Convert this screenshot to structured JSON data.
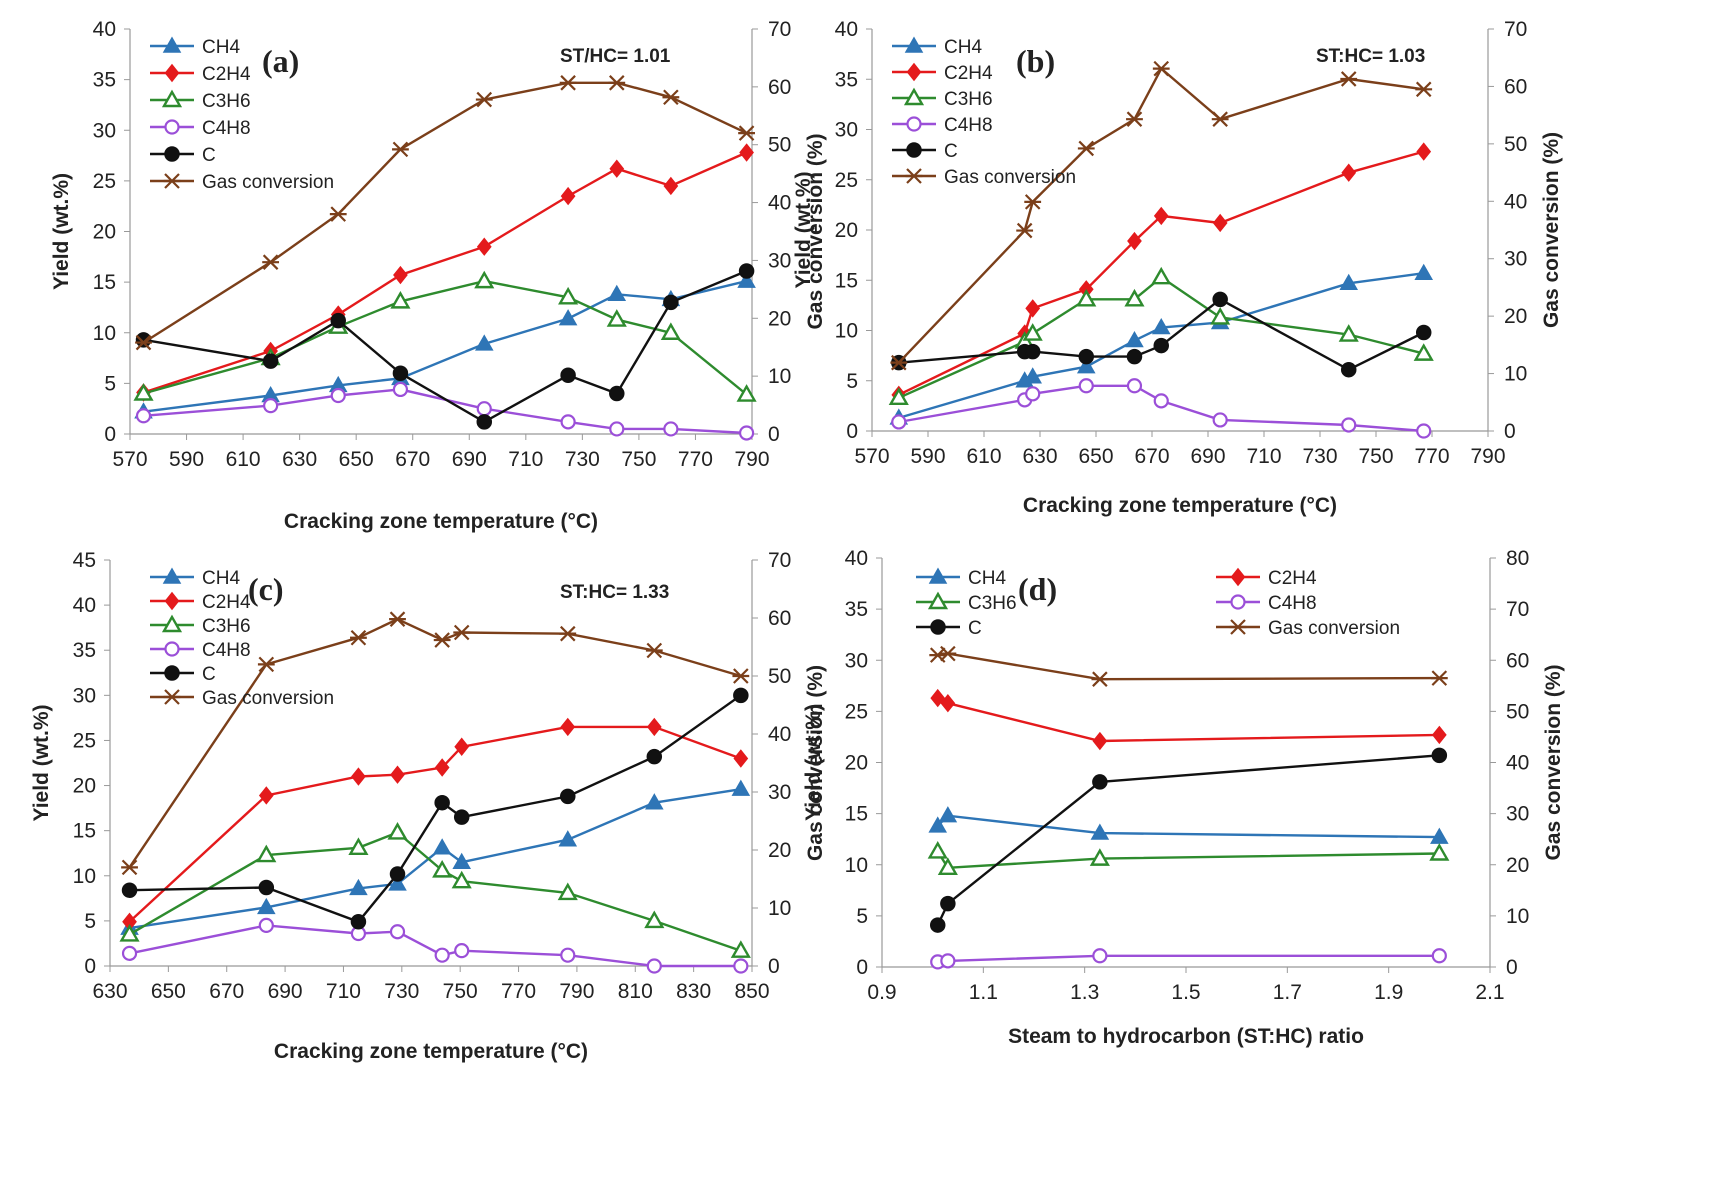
{
  "figure": {
    "description_free": true
  },
  "chart_data": [
    {
      "type": "line",
      "panel_label": "(a)",
      "annotation": "ST/HC= 1.01",
      "xlabel": "Cracking zone temperature (°C)",
      "ylabel": "Yield (wt.%)",
      "y2label": "Gas conversion (%)",
      "xlim": [
        570,
        800
      ],
      "xticks": [
        "570",
        "590",
        "610",
        "630",
        "650",
        "670",
        "690",
        "710",
        "730",
        "750",
        "770",
        "790"
      ],
      "ylim": [
        0,
        40
      ],
      "yticks": [
        "0",
        "5",
        "10",
        "15",
        "20",
        "25",
        "30",
        "35",
        "40"
      ],
      "y2lim": [
        0,
        70
      ],
      "y2ticks": [
        "0",
        "10",
        "20",
        "30",
        "40",
        "50",
        "60",
        "70"
      ],
      "legend_layout": "single-column",
      "series": [
        {
          "name": "CH4",
          "color": "#2e75b6",
          "marker": "triangle",
          "axis": "left",
          "x": [
            575,
            622,
            647,
            670,
            701,
            732,
            750,
            770,
            798
          ],
          "y": [
            2.2,
            3.8,
            4.8,
            5.5,
            8.9,
            11.4,
            13.8,
            13.3,
            15.1
          ]
        },
        {
          "name": "C2H4",
          "color": "#e41a1c",
          "marker": "diamond",
          "axis": "left",
          "x": [
            575,
            622,
            647,
            670,
            701,
            732,
            750,
            770,
            798
          ],
          "y": [
            4.1,
            8.2,
            11.8,
            15.7,
            18.5,
            23.5,
            26.2,
            24.5,
            27.8
          ]
        },
        {
          "name": "C3H6",
          "color": "#2e8b2e",
          "marker": "triangle-open",
          "axis": "left",
          "x": [
            575,
            622,
            647,
            670,
            701,
            732,
            750,
            770,
            798
          ],
          "y": [
            4.0,
            7.5,
            10.6,
            13.1,
            15.1,
            13.5,
            11.3,
            10.0,
            3.9
          ]
        },
        {
          "name": "C4H8",
          "color": "#9b4fd8",
          "marker": "circle-open",
          "axis": "left",
          "x": [
            575,
            622,
            647,
            670,
            701,
            732,
            750,
            770,
            798
          ],
          "y": [
            1.8,
            2.8,
            3.8,
            4.4,
            2.5,
            1.2,
            0.5,
            0.5,
            0.1
          ]
        },
        {
          "name": "C",
          "color": "#111111",
          "marker": "circle",
          "axis": "left",
          "x": [
            575,
            622,
            647,
            670,
            701,
            732,
            750,
            770,
            798
          ],
          "y": [
            9.3,
            7.2,
            11.2,
            6.0,
            1.2,
            5.8,
            4.0,
            13.0,
            16.1
          ]
        },
        {
          "name": "Gas conversion",
          "color": "#7b3f1a",
          "marker": "star",
          "axis": "right",
          "x": [
            575,
            622,
            647,
            670,
            701,
            732,
            750,
            770,
            798
          ],
          "y": [
            15.8,
            29.7,
            38.0,
            49.2,
            57.8,
            60.7,
            60.7,
            58.2,
            52.0
          ]
        }
      ]
    },
    {
      "type": "line",
      "panel_label": "(b)",
      "annotation": "ST:HC= 1.03",
      "xlabel": "Cracking zone temperature (°C)",
      "ylabel": "Yield (wt.%)",
      "y2label": "Gas conversion (%)",
      "xlim": [
        570,
        800
      ],
      "xticks": [
        "570",
        "590",
        "610",
        "630",
        "650",
        "670",
        "690",
        "710",
        "730",
        "750",
        "770",
        "790"
      ],
      "ylim": [
        0,
        40
      ],
      "yticks": [
        "0",
        "5",
        "10",
        "15",
        "20",
        "25",
        "30",
        "35",
        "40"
      ],
      "y2lim": [
        0,
        70
      ],
      "y2ticks": [
        "0",
        "10",
        "20",
        "30",
        "40",
        "50",
        "60",
        "70"
      ],
      "legend_layout": "single-column",
      "series": [
        {
          "name": "CH4",
          "color": "#2e75b6",
          "marker": "triangle",
          "axis": "left",
          "x": [
            580,
            627,
            630,
            650,
            668,
            678,
            700,
            748,
            776
          ],
          "y": [
            1.3,
            5.0,
            5.4,
            6.4,
            9.0,
            10.3,
            10.8,
            14.7,
            15.7
          ]
        },
        {
          "name": "C2H4",
          "color": "#e41a1c",
          "marker": "diamond",
          "axis": "left",
          "x": [
            580,
            627,
            630,
            650,
            668,
            678,
            700,
            748,
            776
          ],
          "y": [
            3.6,
            9.7,
            12.2,
            14.1,
            18.9,
            21.4,
            20.7,
            25.7,
            27.8
          ]
        },
        {
          "name": "C3H6",
          "color": "#2e8b2e",
          "marker": "triangle-open",
          "axis": "left",
          "x": [
            580,
            627,
            630,
            650,
            668,
            678,
            700,
            748,
            776
          ],
          "y": [
            3.3,
            8.9,
            9.7,
            13.1,
            13.1,
            15.3,
            11.3,
            9.6,
            7.7
          ]
        },
        {
          "name": "C4H8",
          "color": "#9b4fd8",
          "marker": "circle-open",
          "axis": "left",
          "x": [
            580,
            627,
            630,
            650,
            668,
            678,
            700,
            748,
            776
          ],
          "y": [
            0.9,
            3.1,
            3.7,
            4.5,
            4.5,
            3.0,
            1.1,
            0.6,
            0.0
          ]
        },
        {
          "name": "C",
          "color": "#111111",
          "marker": "circle",
          "axis": "left",
          "x": [
            580,
            627,
            630,
            650,
            668,
            678,
            700,
            748,
            776
          ],
          "y": [
            6.8,
            7.9,
            7.9,
            7.4,
            7.4,
            8.5,
            13.1,
            6.1,
            9.8
          ]
        },
        {
          "name": "Gas conversion",
          "color": "#7b3f1a",
          "marker": "star",
          "axis": "right",
          "x": [
            580,
            627,
            630,
            650,
            668,
            678,
            700,
            748,
            776
          ],
          "y": [
            11.9,
            34.9,
            39.9,
            49.2,
            54.3,
            63.1,
            54.3,
            61.3,
            59.5
          ]
        }
      ]
    },
    {
      "type": "line",
      "panel_label": "(c)",
      "annotation": "ST:HC= 1.33",
      "xlabel": "Cracking zone temperature (°C)",
      "ylabel": "Yield (wt.%)",
      "y2label": "Gas conversion (%)",
      "xlim": [
        630,
        860
      ],
      "xticks": [
        "630",
        "650",
        "670",
        "690",
        "710",
        "730",
        "750",
        "770",
        "790",
        "810",
        "830",
        "850"
      ],
      "ylim": [
        0,
        45
      ],
      "yticks": [
        "0",
        "5",
        "10",
        "15",
        "20",
        "25",
        "30",
        "35",
        "40",
        "45"
      ],
      "y2lim": [
        0,
        70
      ],
      "y2ticks": [
        "0",
        "10",
        "20",
        "30",
        "40",
        "50",
        "60",
        "70"
      ],
      "legend_layout": "single-column",
      "series": [
        {
          "name": "CH4",
          "color": "#2e75b6",
          "marker": "triangle",
          "axis": "left",
          "x": [
            637,
            686,
            719,
            733,
            749,
            756,
            794,
            825,
            856
          ],
          "y": [
            4.2,
            6.5,
            8.6,
            9.1,
            13.1,
            11.5,
            14.0,
            18.1,
            19.6
          ]
        },
        {
          "name": "C2H4",
          "color": "#e41a1c",
          "marker": "diamond",
          "axis": "left",
          "x": [
            637,
            686,
            719,
            733,
            749,
            756,
            794,
            825,
            856
          ],
          "y": [
            4.9,
            18.9,
            21.0,
            21.2,
            22.0,
            24.3,
            26.5,
            26.5,
            23.0
          ]
        },
        {
          "name": "C3H6",
          "color": "#2e8b2e",
          "marker": "triangle-open",
          "axis": "left",
          "x": [
            637,
            686,
            719,
            733,
            749,
            756,
            794,
            825,
            856
          ],
          "y": [
            3.5,
            12.3,
            13.1,
            14.8,
            10.6,
            9.4,
            8.1,
            5.0,
            1.7
          ]
        },
        {
          "name": "C4H8",
          "color": "#9b4fd8",
          "marker": "circle-open",
          "axis": "left",
          "x": [
            637,
            686,
            719,
            733,
            749,
            756,
            794,
            825,
            856
          ],
          "y": [
            1.4,
            4.5,
            3.6,
            3.8,
            1.2,
            1.7,
            1.2,
            0.0,
            0.0
          ]
        },
        {
          "name": "C",
          "color": "#111111",
          "marker": "circle",
          "axis": "left",
          "x": [
            637,
            686,
            719,
            733,
            749,
            756,
            794,
            825,
            856
          ],
          "y": [
            8.4,
            8.7,
            4.9,
            10.2,
            18.1,
            16.5,
            18.8,
            23.2,
            30.0
          ]
        },
        {
          "name": "Gas conversion",
          "color": "#7b3f1a",
          "marker": "star",
          "axis": "right",
          "x": [
            637,
            686,
            719,
            733,
            749,
            756,
            794,
            825,
            856
          ],
          "y": [
            17.0,
            52.0,
            56.6,
            59.8,
            56.2,
            57.5,
            57.3,
            54.4,
            50.0
          ]
        }
      ]
    },
    {
      "type": "line",
      "panel_label": "(d)",
      "annotation": "",
      "xlabel": "Steam to hydrocarbon (ST:HC) ratio",
      "ylabel": "Yield (wt.%)",
      "y2label": "Gas conversion (%)",
      "xlim": [
        0.9,
        2.1
      ],
      "xticks": [
        "0.9",
        "1.1",
        "1.3",
        "1.5",
        "1.7",
        "1.9",
        "2.1"
      ],
      "ylim": [
        0,
        40
      ],
      "yticks": [
        "0",
        "5",
        "10",
        "15",
        "20",
        "25",
        "30",
        "35",
        "40"
      ],
      "y2lim": [
        0,
        80
      ],
      "y2ticks": [
        "0",
        "10",
        "20",
        "30",
        "40",
        "50",
        "60",
        "70",
        "80"
      ],
      "legend_layout": "two-column",
      "series": [
        {
          "name": "CH4",
          "color": "#2e75b6",
          "marker": "triangle",
          "axis": "left",
          "x": [
            1.01,
            1.03,
            1.33,
            2.0
          ],
          "y": [
            13.8,
            14.8,
            13.1,
            12.7
          ]
        },
        {
          "name": "C2H4",
          "color": "#e41a1c",
          "marker": "diamond",
          "axis": "left",
          "x": [
            1.01,
            1.03,
            1.33,
            2.0
          ],
          "y": [
            26.3,
            25.8,
            22.1,
            22.7
          ]
        },
        {
          "name": "C3H6",
          "color": "#2e8b2e",
          "marker": "triangle-open",
          "axis": "left",
          "x": [
            1.01,
            1.03,
            1.33,
            2.0
          ],
          "y": [
            11.3,
            9.7,
            10.6,
            11.1
          ]
        },
        {
          "name": "C4H8",
          "color": "#9b4fd8",
          "marker": "circle-open",
          "axis": "left",
          "x": [
            1.01,
            1.03,
            1.33,
            2.0
          ],
          "y": [
            0.5,
            0.6,
            1.1,
            1.1
          ]
        },
        {
          "name": "C",
          "color": "#111111",
          "marker": "circle",
          "axis": "left",
          "x": [
            1.01,
            1.03,
            1.33,
            2.0
          ],
          "y": [
            4.1,
            6.2,
            18.1,
            20.7
          ]
        },
        {
          "name": "Gas conversion",
          "color": "#7b3f1a",
          "marker": "star",
          "axis": "right",
          "x": [
            1.01,
            1.03,
            1.33,
            2.0
          ],
          "y": [
            61.0,
            61.3,
            56.3,
            56.5
          ]
        }
      ]
    }
  ]
}
